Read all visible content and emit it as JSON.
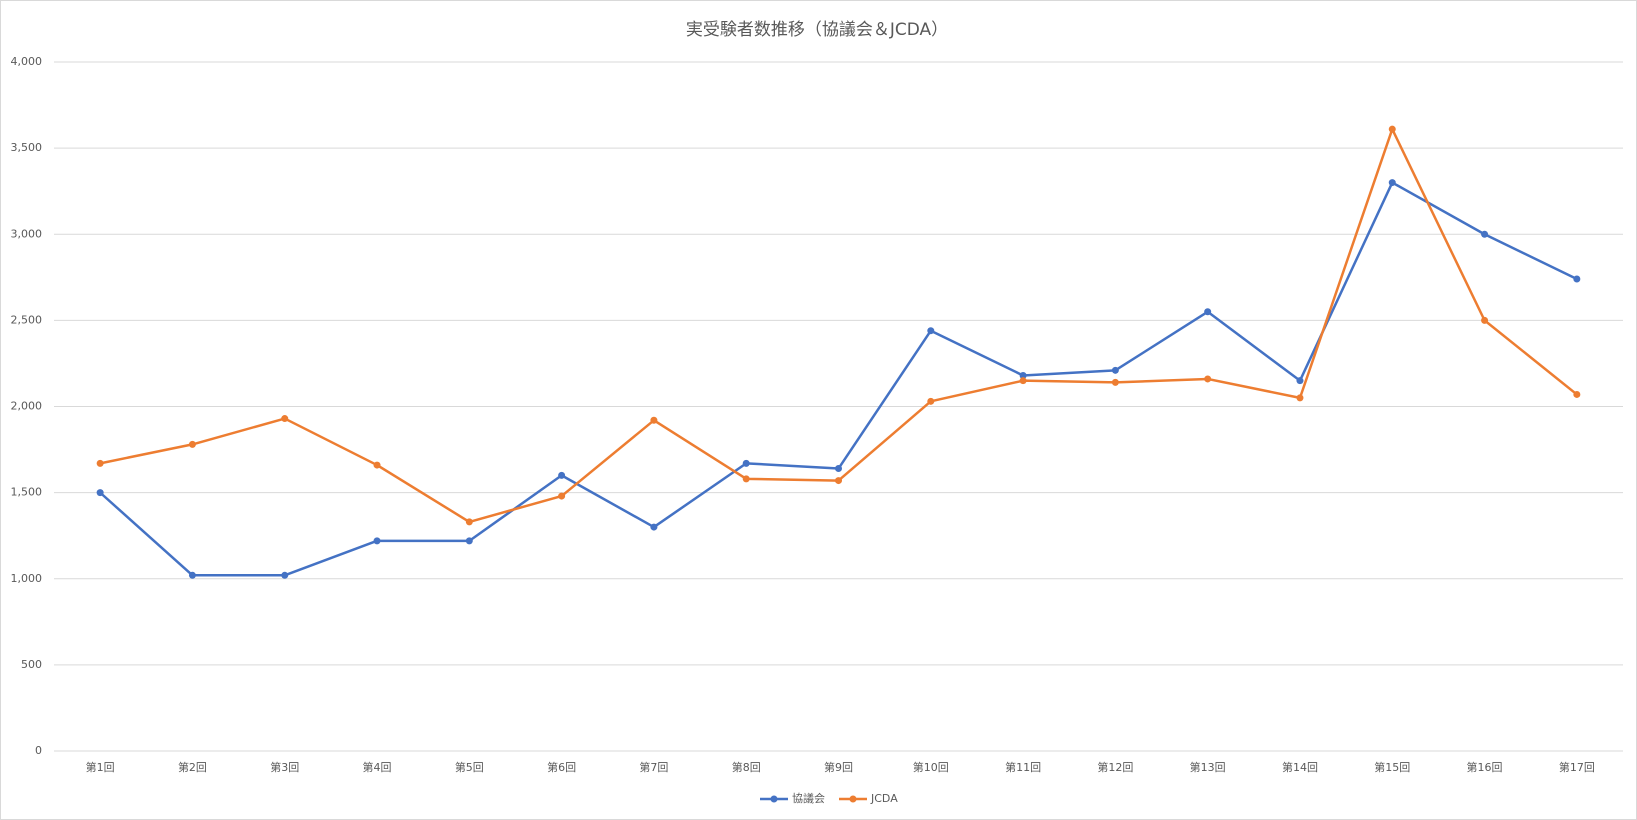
{
  "chart_data": {
    "type": "line",
    "title": "実受験者数推移（協議会＆JCDA）",
    "categories": [
      "第1回",
      "第2回",
      "第3回",
      "第4回",
      "第5回",
      "第6回",
      "第7回",
      "第8回",
      "第9回",
      "第10回",
      "第11回",
      "第12回",
      "第13回",
      "第14回",
      "第15回",
      "第16回",
      "第17回"
    ],
    "series": [
      {
        "name": "協議会",
        "color": "#4472c4",
        "values": [
          1500,
          1020,
          1020,
          1220,
          1220,
          1600,
          1300,
          1670,
          1640,
          2440,
          2180,
          2210,
          2550,
          2150,
          3300,
          3000,
          2740
        ]
      },
      {
        "name": "JCDA",
        "color": "#ed7d31",
        "values": [
          1670,
          1780,
          1930,
          1660,
          1330,
          1480,
          1920,
          1580,
          1570,
          2030,
          2150,
          2140,
          2160,
          2050,
          3610,
          2500,
          2070
        ]
      }
    ],
    "ylim": [
      0,
      4000
    ],
    "yticks": [
      0,
      500,
      {
        "value": 1000,
        "label": "1,000"
      },
      {
        "value": 1500,
        "label": "1,500"
      },
      {
        "value": 2000,
        "label": "2,000"
      },
      {
        "value": 2500,
        "label": "2,500"
      },
      {
        "value": 3000,
        "label": "3,000"
      },
      {
        "value": 3500,
        "label": "3,500"
      },
      {
        "value": 4000,
        "label": "4,000"
      }
    ],
    "grid": true,
    "legend": "bottom"
  }
}
